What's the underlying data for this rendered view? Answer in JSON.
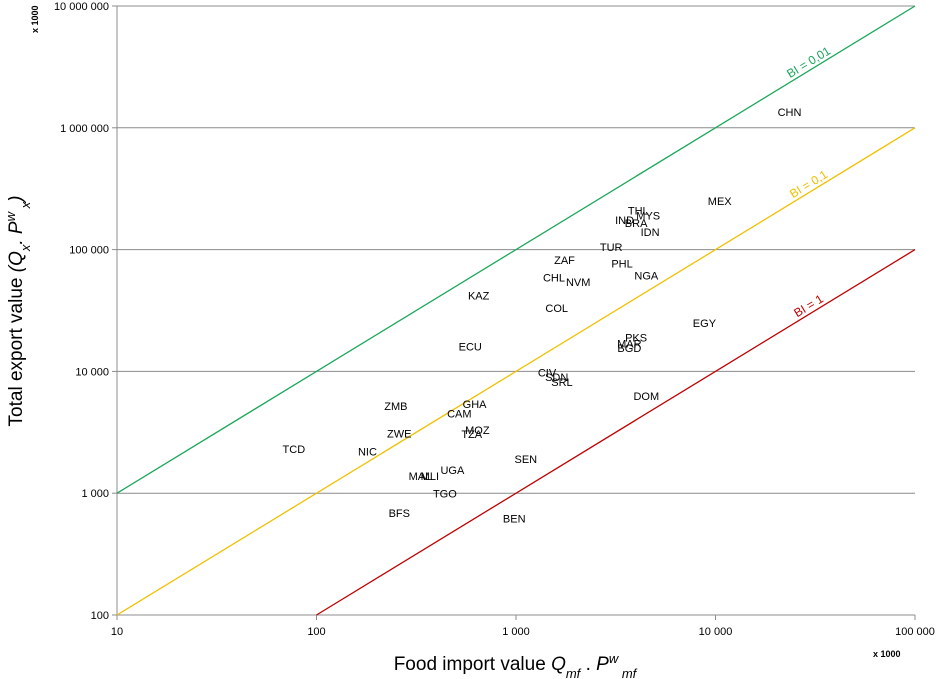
{
  "chart_data": {
    "type": "scatter",
    "title": "",
    "x_scale": "log",
    "y_scale": "log",
    "xlim": [
      10,
      100000
    ],
    "ylim": [
      100,
      10000000
    ],
    "grid": "horizontal",
    "xlabel": {
      "text": "Food import value ",
      "q": "Q",
      "q_sub": "mf",
      "mid": " . ",
      "p": "P",
      "p_sup": "w",
      "p_sub": " mf"
    },
    "ylabel": {
      "text": "Total export value ",
      "open": "(",
      "q": "Q",
      "q_sub": "x",
      "mid": ". ",
      "p": "P",
      "p_sup": "w",
      "p_sub": " x",
      "close": ")"
    },
    "x_multiplier": "x 1000",
    "y_multiplier": "x 1000",
    "x_ticks": [
      {
        "value": 10,
        "label": "10"
      },
      {
        "value": 100,
        "label": "100"
      },
      {
        "value": 1000,
        "label": "1 000"
      },
      {
        "value": 10000,
        "label": "10 000"
      },
      {
        "value": 100000,
        "label": "100 000"
      }
    ],
    "y_ticks": [
      {
        "value": 100,
        "label": "100"
      },
      {
        "value": 1000,
        "label": "1 000"
      },
      {
        "value": 10000,
        "label": "10 000"
      },
      {
        "value": 100000,
        "label": "100 000"
      },
      {
        "value": 1000000,
        "label": "1 000 000"
      },
      {
        "value": 10000000,
        "label": "10 000 000"
      }
    ],
    "reference_lines": [
      {
        "label": "BI = 0,01",
        "ratio": 100,
        "color": "#1aa85a",
        "label_x": 30000
      },
      {
        "label": "BI = 0,1",
        "ratio": 10,
        "color": "#f0c000",
        "label_x": 30000
      },
      {
        "label": "BI = 1",
        "ratio": 1,
        "color": "#c00000",
        "label_x": 30000
      }
    ],
    "points": [
      {
        "label": "CHN",
        "x": 23500,
        "y": 1350000
      },
      {
        "label": "MEX",
        "x": 10500,
        "y": 250000
      },
      {
        "label": "THL",
        "x": 4100,
        "y": 210000
      },
      {
        "label": "MYS",
        "x": 4600,
        "y": 190000
      },
      {
        "label": "IND",
        "x": 3500,
        "y": 175000
      },
      {
        "label": "BRA",
        "x": 4000,
        "y": 165000
      },
      {
        "label": "IDN",
        "x": 4700,
        "y": 140000
      },
      {
        "label": "TUR",
        "x": 3000,
        "y": 105000
      },
      {
        "label": "ZAF",
        "x": 1750,
        "y": 82000
      },
      {
        "label": "PHL",
        "x": 3400,
        "y": 77000
      },
      {
        "label": "CHL",
        "x": 1550,
        "y": 59000
      },
      {
        "label": "NVM",
        "x": 2050,
        "y": 54000
      },
      {
        "label": "NGA",
        "x": 4500,
        "y": 61000
      },
      {
        "label": "KAZ",
        "x": 650,
        "y": 42000
      },
      {
        "label": "COL",
        "x": 1600,
        "y": 33000
      },
      {
        "label": "EGY",
        "x": 8800,
        "y": 25000
      },
      {
        "label": "PKS",
        "x": 4000,
        "y": 19000
      },
      {
        "label": "MAR",
        "x": 3700,
        "y": 17000
      },
      {
        "label": "BGD",
        "x": 3700,
        "y": 15500
      },
      {
        "label": "ECU",
        "x": 590,
        "y": 16000
      },
      {
        "label": "CIV",
        "x": 1430,
        "y": 9800
      },
      {
        "label": "SDN",
        "x": 1600,
        "y": 9000
      },
      {
        "label": "SRL",
        "x": 1700,
        "y": 8200
      },
      {
        "label": "DOM",
        "x": 4500,
        "y": 6300
      },
      {
        "label": "ZMB",
        "x": 250,
        "y": 5200
      },
      {
        "label": "GHA",
        "x": 620,
        "y": 5400
      },
      {
        "label": "CAM",
        "x": 520,
        "y": 4500
      },
      {
        "label": "MOZ",
        "x": 640,
        "y": 3300
      },
      {
        "label": "TZA",
        "x": 600,
        "y": 3050
      },
      {
        "label": "ZWE",
        "x": 260,
        "y": 3100
      },
      {
        "label": "TCD",
        "x": 77,
        "y": 2300
      },
      {
        "label": "NIC",
        "x": 180,
        "y": 2200
      },
      {
        "label": "SEN",
        "x": 1120,
        "y": 1900
      },
      {
        "label": "UGA",
        "x": 480,
        "y": 1550
      },
      {
        "label": "MAL",
        "x": 330,
        "y": 1380
      },
      {
        "label": "MLI",
        "x": 370,
        "y": 1380
      },
      {
        "label": "TGO",
        "x": 440,
        "y": 990
      },
      {
        "label": "BFS",
        "x": 260,
        "y": 690
      },
      {
        "label": "BEN",
        "x": 980,
        "y": 620
      }
    ]
  }
}
